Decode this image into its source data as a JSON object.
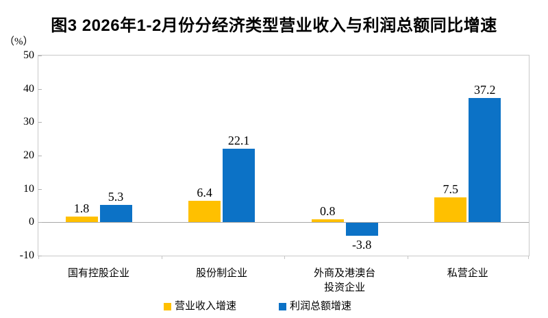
{
  "title": "图3 2026年1-2月份分经济类型营业收入与利润总额同比增速",
  "unit_label": "（%）",
  "colors": {
    "revenue_series": "#FFC000",
    "profit_series": "#0C72C6",
    "plot_border": "#C8C8C8",
    "zero_line": "#A6A6A6"
  },
  "legend": [
    {
      "label": "营业收入增速",
      "color": "#FFC000"
    },
    {
      "label": "利润总额增速",
      "color": "#0C72C6"
    }
  ],
  "chart_data": {
    "type": "bar",
    "title": "图3 2026年1-2月份分经济类型营业收入与利润总额同比增速",
    "ylabel": "（%）",
    "categories": [
      "国有控股企业",
      "股份制企业",
      "外商及港澳台\n投资企业",
      "私营企业"
    ],
    "series": [
      {
        "name": "营业收入增速",
        "color": "#FFC000",
        "values": [
          1.8,
          6.4,
          0.8,
          7.5
        ]
      },
      {
        "name": "利润总额增速",
        "color": "#0C72C6",
        "values": [
          5.3,
          22.1,
          -3.8,
          37.2
        ]
      }
    ],
    "data_labels": [
      [
        "1.8",
        "6.4",
        "0.8",
        "7.5"
      ],
      [
        "5.3",
        "22.1",
        "-3.8",
        "37.2"
      ]
    ],
    "ylim": [
      -10,
      50
    ],
    "yticks": [
      50,
      40,
      30,
      20,
      10,
      0,
      -10
    ],
    "grid": false,
    "legend_position": "bottom"
  }
}
